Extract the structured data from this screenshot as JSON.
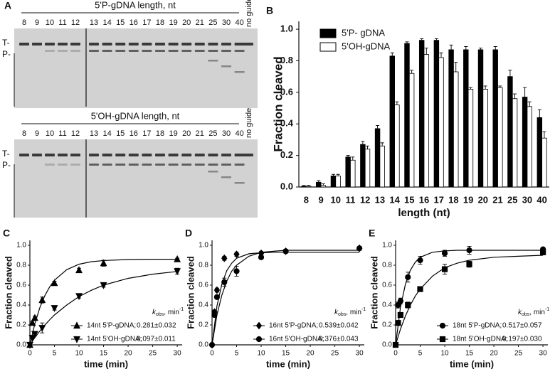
{
  "gels": {
    "panel": "A",
    "blots": [
      {
        "title": "5'P-gDNA length, nt",
        "lanes": [
          "8",
          "9",
          "10",
          "11",
          "12",
          "13",
          "14",
          "15",
          "16",
          "17",
          "18",
          "19",
          "20",
          "21",
          "25",
          "30",
          "40"
        ],
        "no_guide": "no guide",
        "markers": [
          "T-",
          "P-"
        ]
      },
      {
        "title": "5'OH-gDNA length, nt",
        "lanes": [
          "8",
          "9",
          "10",
          "11",
          "12",
          "13",
          "14",
          "15",
          "16",
          "17",
          "18",
          "19",
          "20",
          "21",
          "25",
          "30",
          "40"
        ],
        "no_guide": "no guide",
        "markers": [
          "T-",
          "P-"
        ]
      }
    ]
  },
  "chart_data": [
    {
      "type": "bar",
      "panel": "B",
      "ylabel": "Fraction cleaved",
      "xlabel": "length (nt)",
      "categories": [
        "8",
        "9",
        "10",
        "11",
        "12",
        "13",
        "14",
        "15",
        "16",
        "17",
        "18",
        "19",
        "20",
        "21",
        "25",
        "30",
        "40"
      ],
      "series": [
        {
          "name": "5'P- gDNA",
          "color": "#000000",
          "values": [
            0.005,
            0.03,
            0.07,
            0.19,
            0.27,
            0.37,
            0.83,
            0.91,
            0.93,
            0.93,
            0.87,
            0.87,
            0.87,
            0.87,
            0.7,
            0.57,
            0.44
          ],
          "errors": [
            0.005,
            0.01,
            0.01,
            0.01,
            0.02,
            0.02,
            0.02,
            0.01,
            0.01,
            0.01,
            0.03,
            0.02,
            0.01,
            0.02,
            0.04,
            0.06,
            0.05
          ]
        },
        {
          "name": "5'OH-gDNA",
          "color": "#ffffff",
          "values": [
            0.005,
            0.01,
            0.07,
            0.17,
            0.24,
            0.26,
            0.52,
            0.72,
            0.84,
            0.82,
            0.73,
            0.62,
            0.62,
            0.63,
            0.56,
            0.51,
            0.31
          ],
          "errors": [
            0.005,
            0.01,
            0.01,
            0.02,
            0.02,
            0.02,
            0.02,
            0.02,
            0.04,
            0.03,
            0.06,
            0.01,
            0.02,
            0.01,
            0.03,
            0.03,
            0.04
          ]
        }
      ],
      "ylim": [
        0,
        1.05
      ],
      "yticks": [
        {
          "value": 0,
          "label": "0.0"
        },
        0.2,
        0.4,
        0.6,
        0.8,
        {
          "value": 1,
          "label": "1.0"
        }
      ],
      "legend": "upper-left"
    },
    {
      "type": "scatter",
      "panel": "C",
      "ylabel": "Fraction cleaved",
      "xlabel": "time (min)",
      "legend_title": {
        "symbol": "k",
        "subscript": "obs",
        "unit": ", min",
        "exponent": "-1"
      },
      "series": [
        {
          "name": "14nt 5'P-gDNA;",
          "k": "0.281±0.032",
          "marker": "triangle-up",
          "color": "#000000",
          "x": [
            0,
            0.5,
            1,
            2.5,
            5,
            10,
            15,
            30
          ],
          "values": [
            0,
            0.22,
            0.27,
            0.45,
            0.62,
            0.75,
            0.82,
            0.86
          ],
          "errors": [
            0,
            0.02,
            0.02,
            0.03,
            0.02,
            0.02,
            0.03,
            0.01
          ]
        },
        {
          "name": "14nt 5'OH-gDNA;",
          "k": "0.097±0.011",
          "marker": "triangle-down",
          "color": "#000000",
          "x": [
            0,
            0.5,
            1,
            2.5,
            5,
            10,
            15,
            30
          ],
          "values": [
            0,
            0.07,
            0.11,
            0.17,
            0.37,
            0.49,
            0.6,
            0.74
          ],
          "errors": [
            0,
            0.01,
            0.02,
            0.05,
            0.02,
            0.02,
            0.02,
            0.03
          ]
        }
      ],
      "fits": [
        {
          "x": [
            0,
            1,
            2,
            3,
            4,
            5,
            7.5,
            10,
            12.5,
            15,
            20,
            25,
            30
          ],
          "values": [
            0,
            0.21,
            0.37,
            0.49,
            0.58,
            0.65,
            0.755,
            0.81,
            0.835,
            0.847,
            0.857,
            0.86,
            0.86
          ]
        },
        {
          "x": [
            0,
            1,
            2,
            3,
            4,
            5,
            7.5,
            10,
            12.5,
            15,
            20,
            25,
            30
          ],
          "values": [
            0,
            0.072,
            0.137,
            0.197,
            0.25,
            0.3,
            0.4,
            0.485,
            0.548,
            0.6,
            0.668,
            0.71,
            0.737
          ]
        }
      ],
      "xlim": [
        0,
        31
      ],
      "xticks": [
        0,
        5,
        10,
        15,
        20,
        25,
        30
      ],
      "ylim": [
        0,
        1.05
      ],
      "yticks": [
        {
          "value": 0,
          "label": "0.0"
        },
        0.2,
        0.4,
        0.6,
        0.8,
        {
          "value": 1,
          "label": "1.0"
        }
      ]
    },
    {
      "type": "scatter",
      "panel": "D",
      "ylabel": "Fraction cleaved",
      "xlabel": "time (min)",
      "legend_title": {
        "symbol": "k",
        "subscript": "obs",
        "unit": ", min",
        "exponent": "-1"
      },
      "series": [
        {
          "name": "16nt 5'P-gDNA;",
          "k": "0.539±0.042",
          "marker": "diamond",
          "color": "#000000",
          "x": [
            0,
            0.5,
            1,
            2.5,
            5,
            10,
            15,
            30
          ],
          "values": [
            0,
            0.33,
            0.55,
            0.87,
            0.91,
            0.92,
            0.94,
            0.97
          ],
          "errors": [
            0,
            0.02,
            0.02,
            0.02,
            0.02,
            0.02,
            0.02,
            0.01
          ]
        },
        {
          "name": "16nt 5'OH-gDNA;",
          "k": "0.376±0.043",
          "marker": "circle",
          "color": "#000000",
          "x": [
            0,
            0.5,
            1,
            2.5,
            5,
            10,
            15,
            30
          ],
          "values": [
            0,
            0.3,
            0.48,
            0.63,
            0.74,
            0.88,
            0.94,
            0.97
          ],
          "errors": [
            0,
            0.02,
            0.02,
            0.04,
            0.05,
            0.02,
            0.02,
            0.01
          ]
        }
      ],
      "fits": [
        {
          "x": [
            0,
            1,
            2,
            3,
            4,
            5,
            7.5,
            10,
            12.5,
            15,
            20,
            25,
            30
          ],
          "values": [
            0,
            0.39,
            0.61,
            0.745,
            0.82,
            0.87,
            0.915,
            0.925,
            0.93,
            0.93,
            0.93,
            0.93,
            0.93
          ]
        },
        {
          "x": [
            0,
            1,
            2,
            3,
            4,
            5,
            7.5,
            10,
            12.5,
            15,
            20,
            25,
            30
          ],
          "values": [
            0,
            0.3,
            0.5,
            0.64,
            0.74,
            0.8,
            0.89,
            0.93,
            0.94,
            0.95,
            0.95,
            0.95,
            0.95
          ]
        }
      ],
      "xlim": [
        0,
        31
      ],
      "xticks": [
        0,
        5,
        10,
        15,
        20,
        25,
        30
      ],
      "ylim": [
        0,
        1.05
      ],
      "yticks": [
        {
          "value": 0,
          "label": "0.0"
        },
        0.2,
        0.4,
        0.6,
        0.8,
        {
          "value": 1,
          "label": "1.0"
        }
      ]
    },
    {
      "type": "scatter",
      "panel": "E",
      "ylabel": "Fraction cleaved",
      "xlabel": "time (min)",
      "legend_title": {
        "symbol": "k",
        "subscript": "obs",
        "unit": ", min",
        "exponent": "-1"
      },
      "series": [
        {
          "name": "18nt 5'P-gDNA;",
          "k": "0.517±0.057",
          "marker": "circle",
          "color": "#000000",
          "x": [
            0,
            0.5,
            1,
            2.5,
            5,
            10,
            15,
            30
          ],
          "values": [
            0,
            0.4,
            0.44,
            0.68,
            0.85,
            0.92,
            0.95,
            0.96
          ],
          "errors": [
            0,
            0.03,
            0.03,
            0.05,
            0.04,
            0.03,
            0.04,
            0.02
          ]
        },
        {
          "name": "18nt 5'OH-gDNA;",
          "k": "0.197±0.030",
          "marker": "square",
          "color": "#000000",
          "x": [
            0,
            0.5,
            1,
            2.5,
            5,
            10,
            15,
            30
          ],
          "values": [
            0,
            0.22,
            0.3,
            0.4,
            0.56,
            0.76,
            0.81,
            0.93
          ],
          "errors": [
            0,
            0.02,
            0.02,
            0.03,
            0.02,
            0.05,
            0.03,
            0.02
          ]
        }
      ],
      "fits": [
        {
          "x": [
            0,
            1,
            2,
            3,
            4,
            5,
            7.5,
            10,
            12.5,
            15,
            20,
            25,
            30
          ],
          "values": [
            0,
            0.38,
            0.61,
            0.75,
            0.83,
            0.88,
            0.93,
            0.944,
            0.95,
            0.95,
            0.95,
            0.95,
            0.95
          ]
        },
        {
          "x": [
            0,
            1,
            2,
            3,
            4,
            5,
            7.5,
            10,
            12.5,
            15,
            20,
            25,
            30
          ],
          "values": [
            0,
            0.16,
            0.29,
            0.4,
            0.49,
            0.56,
            0.69,
            0.775,
            0.82,
            0.85,
            0.88,
            0.89,
            0.9
          ]
        }
      ],
      "xlim": [
        0,
        31
      ],
      "xticks": [
        0,
        5,
        10,
        15,
        20,
        25,
        30
      ],
      "ylim": [
        0,
        1.05
      ],
      "yticks": [
        {
          "value": 0,
          "label": "0.0"
        },
        0.2,
        0.4,
        0.6,
        0.8,
        {
          "value": 1,
          "label": "1.0"
        }
      ]
    }
  ]
}
